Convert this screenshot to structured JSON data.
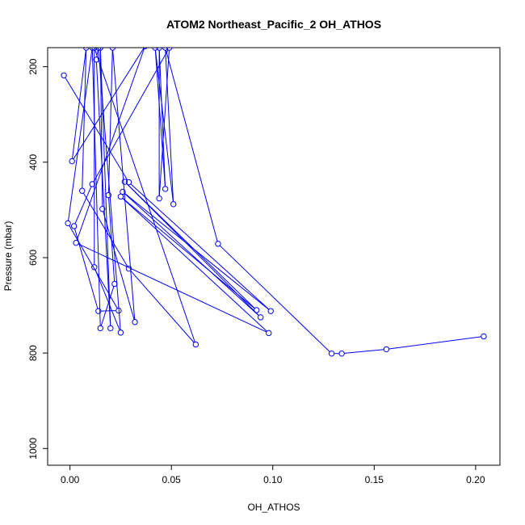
{
  "chart_data": {
    "type": "line",
    "title": "ATOM2 Northeast_Pacific_2 OH_ATHOS",
    "xlabel": "OH_ATHOS",
    "ylabel": "Pressure (mbar)",
    "xlim": [
      -0.011,
      0.212
    ],
    "ylim": [
      1035,
      160
    ],
    "y_reversed": true,
    "grid": false,
    "legend": "none",
    "color": "#0000ff",
    "x_ticks": [
      0.0,
      0.05,
      0.1,
      0.15,
      0.2
    ],
    "x_tick_labels": [
      "0.00",
      "0.05",
      "0.10",
      "0.15",
      "0.20"
    ],
    "y_ticks": [
      200,
      400,
      600,
      800,
      1000
    ],
    "y_tick_labels": [
      "200",
      "400",
      "600",
      "800",
      "1000"
    ],
    "series": [
      {
        "values": [
          [
            -0.003,
            218
          ],
          [
            0.029,
            442
          ],
          [
            0.099,
            712
          ],
          [
            0.026,
            462
          ],
          [
            0.094,
            725
          ],
          [
            0.027,
            441
          ],
          [
            0.092,
            710
          ],
          [
            0.025,
            472
          ],
          [
            0.098,
            758
          ],
          [
            0.003,
            569
          ],
          [
            0.037,
            157
          ],
          [
            0.001,
            398
          ],
          [
            0.008,
            160
          ],
          [
            0.006,
            460
          ],
          [
            0.029,
            623
          ],
          [
            0.062,
            782
          ],
          [
            0.012,
            160
          ],
          [
            0.012,
            620
          ],
          [
            0.025,
            757
          ],
          [
            0.014,
            160
          ],
          [
            0.013,
            185
          ],
          [
            0.02,
            748
          ],
          [
            0.015,
            160
          ],
          [
            0.016,
            498
          ],
          [
            0.032,
            735
          ],
          [
            0.021,
            160
          ],
          [
            0.019,
            469
          ],
          [
            0.022,
            655
          ],
          [
            0.015,
            748
          ],
          [
            0.011,
            160
          ],
          [
            -0.001,
            528
          ],
          [
            0.024,
            711
          ],
          [
            0.014,
            712
          ],
          [
            0.002,
            534
          ],
          [
            0.011,
            446
          ],
          [
            0.049,
            160
          ],
          [
            0.044,
            476
          ],
          [
            0.044,
            160
          ],
          [
            0.047,
            456
          ],
          [
            0.042,
            160
          ],
          [
            0.051,
            488
          ],
          [
            0.047,
            160
          ],
          [
            0.073,
            571
          ],
          [
            0.129,
            801
          ],
          [
            0.134,
            801
          ],
          [
            0.156,
            792
          ],
          [
            0.204,
            765
          ]
        ]
      }
    ]
  }
}
